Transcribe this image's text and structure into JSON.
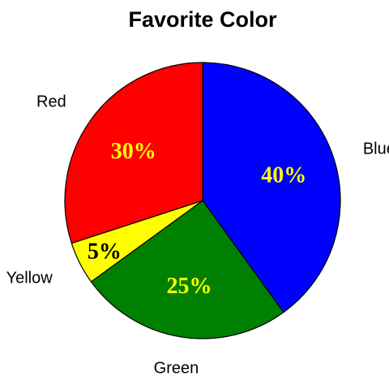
{
  "chart_data": {
    "type": "pie",
    "title": "Favorite Color",
    "slices": [
      {
        "label": "Blue",
        "value": 40,
        "percent_label": "40%",
        "color": "#0000FF",
        "label_color": "#FFFF00"
      },
      {
        "label": "Green",
        "value": 25,
        "percent_label": "25%",
        "color": "#008000",
        "label_color": "#FFFF00"
      },
      {
        "label": "Yellow",
        "value": 5,
        "percent_label": "5%",
        "color": "#FFFF00",
        "label_color": "#000000"
      },
      {
        "label": "Red",
        "value": 30,
        "percent_label": "30%",
        "color": "#FF0000",
        "label_color": "#FFFF00"
      }
    ]
  }
}
